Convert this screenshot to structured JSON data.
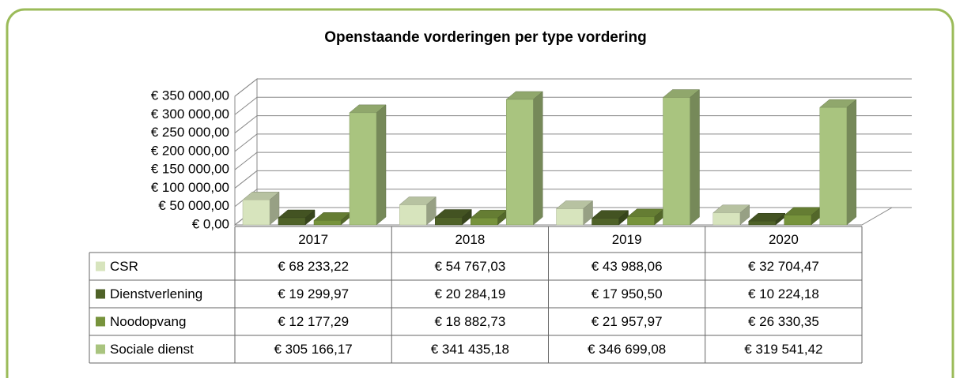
{
  "chart_data": {
    "type": "bar",
    "title": "Openstaande vorderingen per type vordering",
    "categories": [
      "2017",
      "2018",
      "2019",
      "2020"
    ],
    "series": [
      {
        "name": "CSR",
        "color": "#d7e4bd",
        "values": [
          68233.22,
          54767.03,
          43988.06,
          32704.47
        ],
        "value_labels": [
          "€ 68 233,22",
          "€ 54 767,03",
          "€ 43 988,06",
          "€ 32 704,47"
        ]
      },
      {
        "name": "Dienstverlening",
        "color": "#4f6228",
        "values": [
          19299.97,
          20284.19,
          17950.5,
          10224.18
        ],
        "value_labels": [
          "€ 19 299,97",
          "€ 20 284,19",
          "€ 17 950,50",
          "€ 10 224,18"
        ]
      },
      {
        "name": "Noodopvang",
        "color": "#77933c",
        "values": [
          12177.29,
          18882.73,
          21957.97,
          26330.35
        ],
        "value_labels": [
          "€ 12 177,29",
          "€ 18 882,73",
          "€ 21 957,97",
          "€ 26 330,35"
        ]
      },
      {
        "name": "Sociale dienst",
        "color": "#a9c47f",
        "values": [
          305166.17,
          341435.18,
          346699.08,
          319541.42
        ],
        "value_labels": [
          "€ 305 166,17",
          "€ 341 435,18",
          "€ 346 699,08",
          "€ 319 541,42"
        ]
      }
    ],
    "ylim": [
      0,
      350000
    ],
    "yticks": [
      {
        "value": 0,
        "label": "€ 0,00"
      },
      {
        "value": 50000,
        "label": "€ 50 000,00"
      },
      {
        "value": 100000,
        "label": "€ 100 000,00"
      },
      {
        "value": 150000,
        "label": "€ 150 000,00"
      },
      {
        "value": 200000,
        "label": "€ 200 000,00"
      },
      {
        "value": 250000,
        "label": "€ 250 000,00"
      },
      {
        "value": 300000,
        "label": "€ 300 000,00"
      },
      {
        "value": 350000,
        "label": "€ 350 000,00"
      }
    ],
    "grid": true
  }
}
